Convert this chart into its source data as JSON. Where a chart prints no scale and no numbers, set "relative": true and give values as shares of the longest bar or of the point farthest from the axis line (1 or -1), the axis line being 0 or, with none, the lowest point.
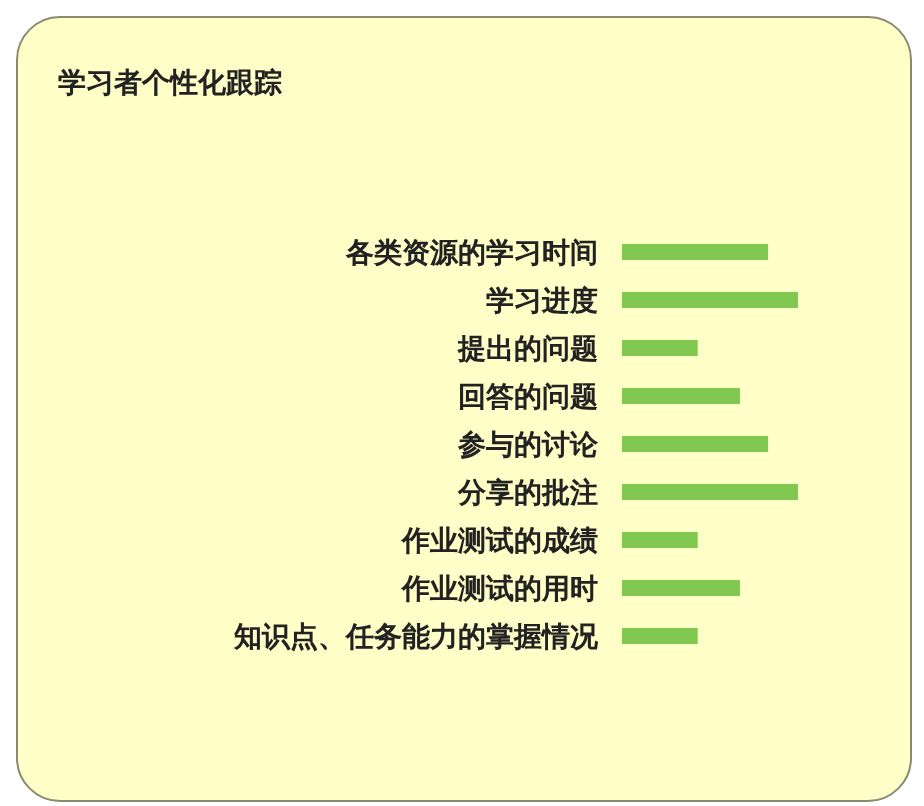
{
  "chart_data": {
    "type": "bar",
    "title": "学习者个性化跟踪",
    "orientation": "horizontal",
    "relative": true,
    "categories": [
      "各类资源的学习时间",
      "学习进度",
      "提出的问题",
      "回答的问题",
      "参与的讨论",
      "分享的批注",
      "作业测试的成绩",
      "作业测试的用时",
      "知识点、任务能力的掌握情况"
    ],
    "values": [
      0.83,
      1,
      0.43,
      0.67,
      0.83,
      1,
      0.43,
      0.67,
      0.43
    ],
    "color": "#80c850",
    "legend": false,
    "grid": false
  }
}
